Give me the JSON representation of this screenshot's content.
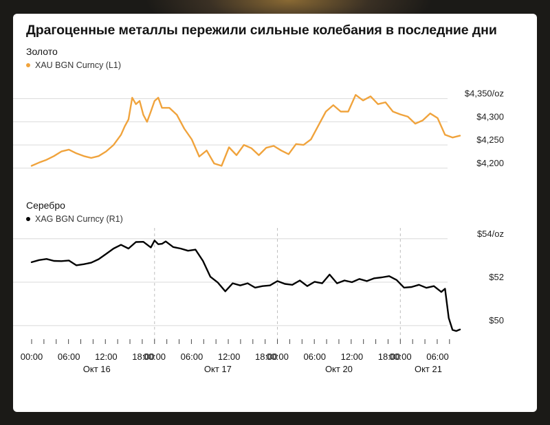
{
  "title": "Драгоценные металлы пережили сильные колебания в последние дни",
  "colors": {
    "gold": "#f0a33c",
    "silver": "#000000",
    "grid": "#d9d9d9"
  },
  "chart_data": [
    {
      "type": "line",
      "panel_label": "Золото",
      "series_name": "XAU BGN Curncy (L1)",
      "color": "#f0a33c",
      "ylim": [
        4185,
        4385
      ],
      "y_ticks": [
        {
          "value": 4350,
          "label": "$4,350/oz"
        },
        {
          "value": 4300,
          "label": "$4,300"
        },
        {
          "value": 4250,
          "label": "$4,250"
        },
        {
          "value": 4200,
          "label": "$4,200"
        }
      ],
      "x_index": [
        0,
        4,
        8,
        12,
        16,
        20,
        24,
        28,
        32,
        36,
        40,
        44,
        48,
        50,
        52,
        54,
        56,
        58,
        60,
        62,
        64,
        66,
        68,
        70,
        74,
        78,
        82,
        86,
        90,
        94,
        98,
        102,
        106,
        110,
        114,
        118,
        122,
        126,
        130,
        134,
        138,
        142,
        146,
        150,
        154,
        158,
        162,
        166,
        170,
        174,
        178,
        182,
        186,
        190,
        194,
        198,
        202,
        206,
        210,
        214,
        218,
        222,
        226,
        230
      ],
      "values": [
        4205,
        4212,
        4218,
        4226,
        4236,
        4240,
        4232,
        4226,
        4222,
        4226,
        4236,
        4250,
        4272,
        4290,
        4305,
        4352,
        4338,
        4345,
        4315,
        4300,
        4322,
        4345,
        4352,
        4330,
        4330,
        4315,
        4285,
        4262,
        4225,
        4238,
        4210,
        4205,
        4245,
        4228,
        4250,
        4243,
        4228,
        4244,
        4248,
        4238,
        4230,
        4252,
        4250,
        4262,
        4292,
        4322,
        4336,
        4322,
        4322,
        4358,
        4346,
        4355,
        4338,
        4342,
        4322,
        4316,
        4311,
        4296,
        4303,
        4318,
        4308,
        4272,
        4266,
        4270
      ]
    },
    {
      "type": "line",
      "panel_label": "Серебро",
      "series_name": "XAG BGN Curncy (R1)",
      "color": "#000000",
      "ylim": [
        49.5,
        54.5
      ],
      "y_ticks": [
        {
          "value": 54,
          "label": "$54/oz"
        },
        {
          "value": 52,
          "label": "$52"
        },
        {
          "value": 50,
          "label": "$50"
        }
      ],
      "x_index": [
        0,
        4,
        8,
        12,
        16,
        20,
        24,
        28,
        32,
        36,
        40,
        44,
        48,
        52,
        56,
        60,
        64,
        66,
        68,
        70,
        72,
        76,
        80,
        84,
        88,
        92,
        96,
        100,
        104,
        108,
        112,
        116,
        120,
        124,
        128,
        132,
        136,
        140,
        144,
        148,
        152,
        156,
        160,
        164,
        168,
        172,
        176,
        180,
        184,
        188,
        192,
        196,
        200,
        204,
        208,
        212,
        216,
        220,
        222,
        224,
        226,
        228,
        230
      ],
      "values": [
        52.92,
        53.02,
        53.07,
        52.98,
        52.97,
        53.0,
        52.78,
        52.83,
        52.9,
        53.06,
        53.3,
        53.55,
        53.72,
        53.55,
        53.85,
        53.86,
        53.6,
        53.92,
        53.75,
        53.77,
        53.88,
        53.62,
        53.55,
        53.45,
        53.5,
        52.98,
        52.25,
        51.98,
        51.58,
        51.95,
        51.85,
        51.95,
        51.75,
        51.82,
        51.85,
        52.05,
        51.92,
        51.88,
        52.08,
        51.82,
        52.02,
        51.95,
        52.35,
        51.95,
        52.08,
        52.0,
        52.15,
        52.05,
        52.18,
        52.22,
        52.28,
        52.1,
        51.75,
        51.78,
        51.88,
        51.74,
        51.82,
        51.55,
        51.7,
        50.35,
        49.8,
        49.75,
        49.82
      ]
    }
  ],
  "x_axis": {
    "index_range": [
      0,
      230
    ],
    "time_ticks": [
      {
        "i": 0,
        "label": "00:00"
      },
      {
        "i": 20,
        "label": "06:00"
      },
      {
        "i": 40,
        "label": "12:00"
      },
      {
        "i": 60,
        "label": "18:00"
      },
      {
        "i": 66,
        "label": "00:00"
      },
      {
        "i": 86,
        "label": "06:00"
      },
      {
        "i": 106,
        "label": "12:00"
      },
      {
        "i": 126,
        "label": "18:00"
      },
      {
        "i": 132,
        "label": "00:00"
      },
      {
        "i": 152,
        "label": "06:00"
      },
      {
        "i": 172,
        "label": "12:00"
      },
      {
        "i": 192,
        "label": "18:00"
      },
      {
        "i": 198,
        "label": "00:00"
      },
      {
        "i": 218,
        "label": "06:00"
      }
    ],
    "day_ticks": [
      {
        "i": 35,
        "label": "Окт 16"
      },
      {
        "i": 100,
        "label": "Окт 17"
      },
      {
        "i": 165,
        "label": "Окт 20"
      },
      {
        "i": 213,
        "label": "Окт 21"
      }
    ],
    "day_dividers": [
      66,
      132,
      198
    ]
  }
}
